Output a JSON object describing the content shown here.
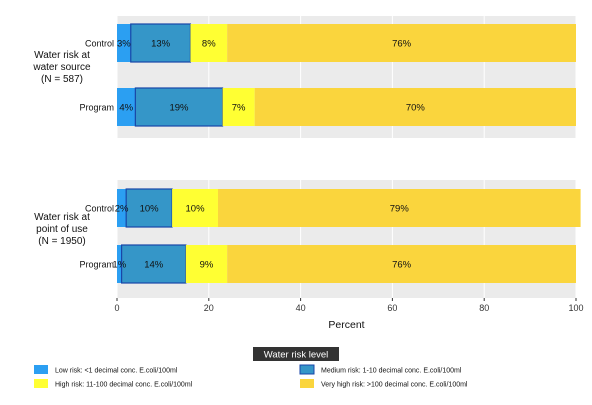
{
  "chart_data": {
    "type": "bar",
    "stacked": true,
    "orientation": "horizontal",
    "title": "",
    "xlabel": "Percent",
    "xlim": [
      0,
      100
    ],
    "x_ticks": [
      "0",
      "20",
      "40",
      "60",
      "80",
      "100"
    ],
    "x_tick_values": [
      0,
      20,
      40,
      60,
      80,
      100
    ],
    "grid": true,
    "panels": [
      {
        "label_lines": [
          "Water risk at",
          "water source",
          "(N = 587)"
        ],
        "categories": [
          "Control",
          "Program"
        ],
        "values": [
          [
            3,
            13,
            8,
            76
          ],
          [
            4,
            19,
            7,
            70
          ]
        ],
        "value_labels": [
          [
            "3%",
            "13%",
            "8%",
            "76%"
          ],
          [
            "4%",
            "19%",
            "7%",
            "70%"
          ]
        ]
      },
      {
        "label_lines": [
          "Water risk at",
          "point of use",
          "(N = 1950)"
        ],
        "categories": [
          "Control",
          "Program"
        ],
        "values": [
          [
            2,
            10,
            10,
            79
          ],
          [
            1,
            14,
            9,
            76
          ]
        ],
        "value_labels": [
          [
            "2%",
            "10%",
            "10%",
            "79%"
          ],
          [
            "1%",
            "14%",
            "9%",
            "76%"
          ]
        ]
      }
    ],
    "legend_title": "Water risk level",
    "legend_placement": "bottom",
    "series": [
      {
        "name": "Low risk: <1 decimal conc. E.coli/100ml",
        "color": "#2b9ff2"
      },
      {
        "name": "Medium risk: 1-10 decimal conc. E.coli/100ml",
        "color": "#3596c8"
      },
      {
        "name": "High risk: 11-100 decimal conc. E.coli/100ml",
        "color": "#ffff33"
      },
      {
        "name": "Very high risk: >100 decimal conc. E.coli/100ml",
        "color": "#fad53d"
      }
    ],
    "highlighted_series_index": 1,
    "highlight_border_color": "#1846a8",
    "panel_background": "#ebebeb",
    "grid_color": "#ffffff"
  }
}
